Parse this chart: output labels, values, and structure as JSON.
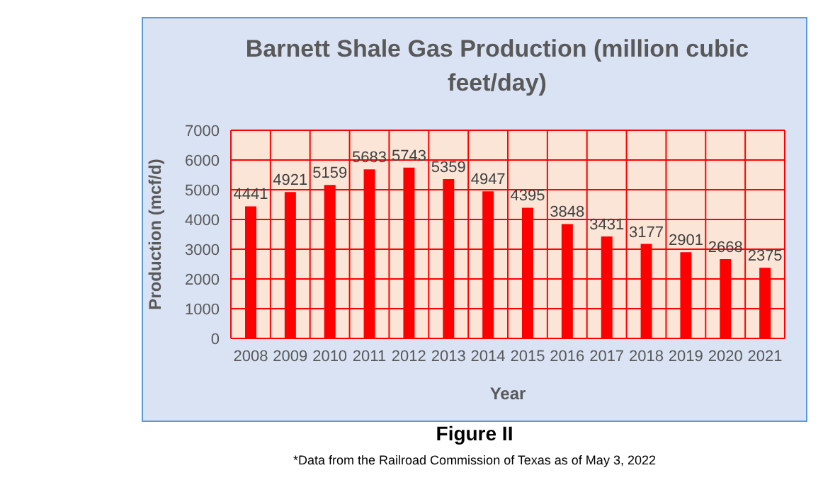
{
  "chart_data": {
    "type": "bar",
    "title": "Barnett Shale Gas Production (million cubic feet/day)",
    "xlabel": "Year",
    "ylabel": "Production (mcf/d)",
    "categories": [
      "2008",
      "2009",
      "2010",
      "2011",
      "2012",
      "2013",
      "2014",
      "2015",
      "2016",
      "2017",
      "2018",
      "2019",
      "2020",
      "2021"
    ],
    "values": [
      4441,
      4921,
      5159,
      5683,
      5743,
      5359,
      4947,
      4395,
      3848,
      3431,
      3177,
      2901,
      2668,
      2375
    ],
    "color": "#ff0000",
    "ylim": [
      0,
      7000
    ],
    "yticks": [
      0,
      1000,
      2000,
      3000,
      4000,
      5000,
      6000,
      7000
    ],
    "grid": true,
    "data_labels": true,
    "annotations": [
      "Figure II",
      "*Data from the Railroad Commission of Texas as of May 3, 2022"
    ]
  }
}
